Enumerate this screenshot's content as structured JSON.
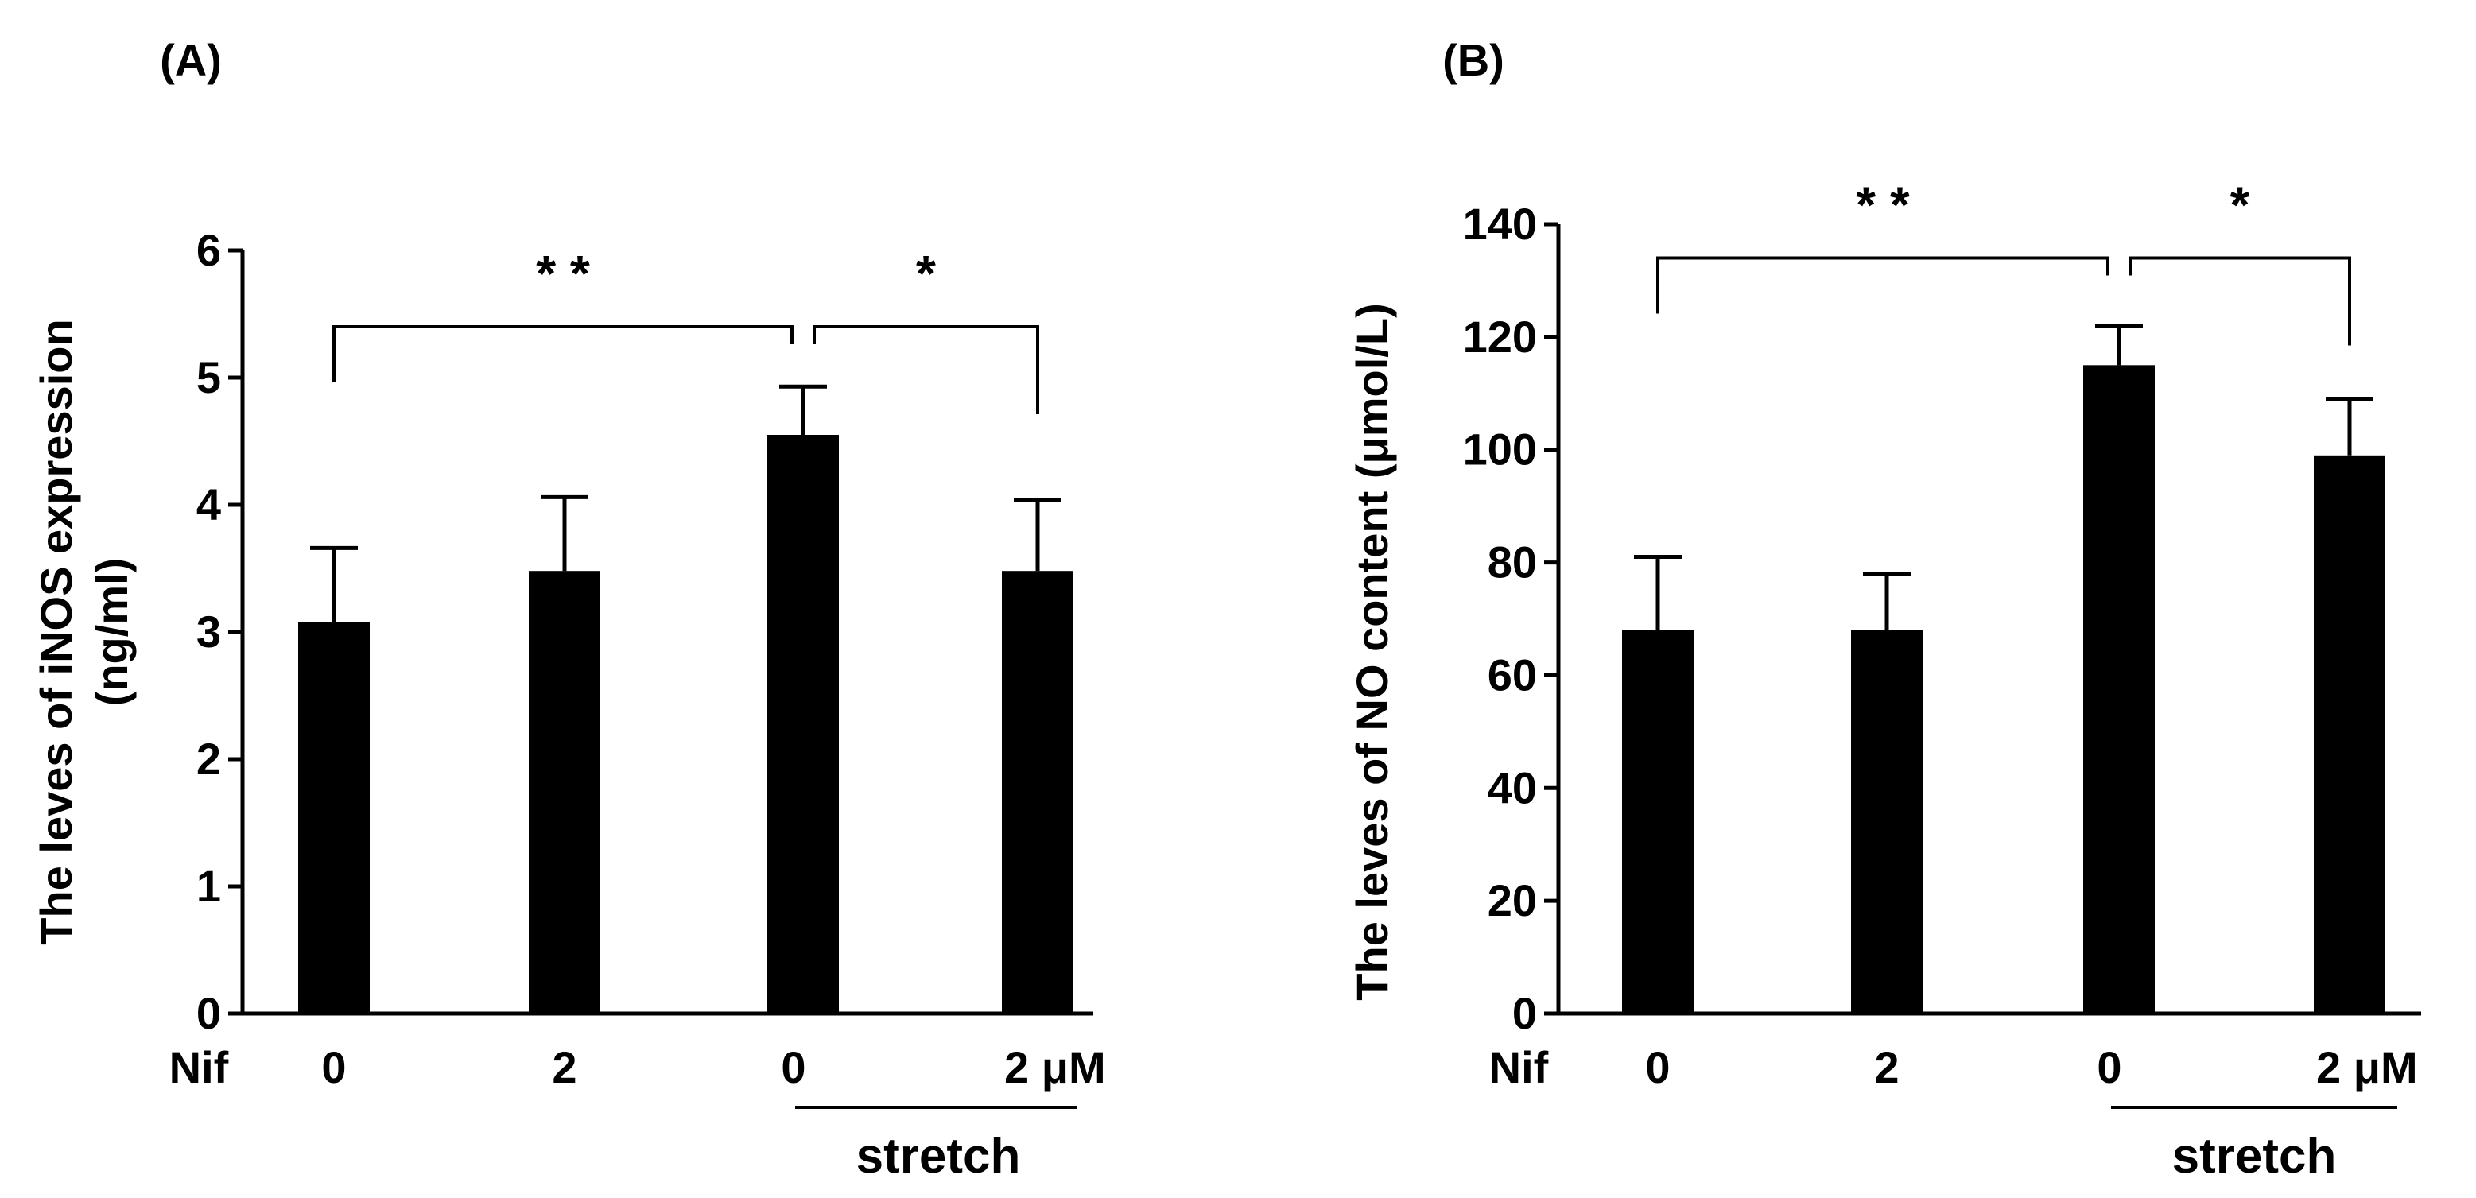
{
  "colors": {
    "bar": "#000000",
    "axis": "#000000",
    "background": "#ffffff"
  },
  "chart_data": [
    {
      "panel_label": "(A)",
      "type": "bar",
      "ylabel": "The leves of iNOS expression",
      "ylabel_unit": "(ng/ml)",
      "ylim": [
        0,
        6
      ],
      "yticks": [
        0,
        1,
        2,
        3,
        4,
        5,
        6
      ],
      "x_prefix": "Nif",
      "categories": [
        "0",
        "2",
        "0",
        "2 μM"
      ],
      "group_label": "stretch",
      "values": [
        3.08,
        3.48,
        4.55,
        3.48
      ],
      "errors": [
        0.58,
        0.58,
        0.38,
        0.56
      ],
      "significance": [
        {
          "from": 0,
          "to": 2,
          "label": "* *",
          "y": 5.4
        },
        {
          "from": 2,
          "to": 3,
          "label": "*",
          "y": 5.4
        }
      ]
    },
    {
      "panel_label": "(B)",
      "type": "bar",
      "ylabel": "The leves of NO content (μmol/L)",
      "ylabel_unit": "",
      "ylim": [
        0,
        140
      ],
      "yticks": [
        0,
        20,
        40,
        60,
        80,
        100,
        120,
        140
      ],
      "x_prefix": "Nif",
      "categories": [
        "0",
        "2",
        "0",
        "2 μM"
      ],
      "group_label": "stretch",
      "values": [
        68,
        68,
        115,
        99
      ],
      "errors": [
        13,
        10,
        7,
        10
      ],
      "significance": [
        {
          "from": 0,
          "to": 2,
          "label": "* *",
          "y": 134
        },
        {
          "from": 2,
          "to": 3,
          "label": "*",
          "y": 134
        }
      ]
    }
  ]
}
